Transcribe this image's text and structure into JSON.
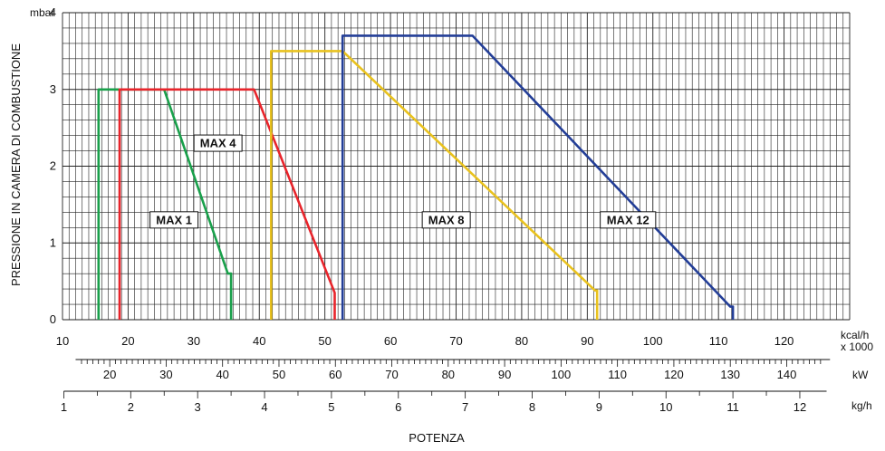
{
  "chart_data": {
    "type": "area",
    "y_unit": "mbar",
    "ylabel": "PRESSIONE IN CAMERA DI COMBUSTIONE",
    "xlabel": "POTENZA",
    "ylim": [
      0,
      4
    ],
    "yticks": [
      "0",
      "1",
      "2",
      "3",
      "4"
    ],
    "xlim": [
      10,
      130
    ],
    "grid": true,
    "axes": [
      {
        "unit": "kcal/h",
        "unit2": "x 1000",
        "ticks": [
          10,
          20,
          30,
          40,
          50,
          60,
          70,
          80,
          90,
          100,
          110,
          120
        ]
      },
      {
        "unit": "kW",
        "ticks": [
          20,
          30,
          40,
          50,
          60,
          70,
          80,
          90,
          100,
          110,
          120,
          130,
          140
        ]
      },
      {
        "unit": "kg/h",
        "ticks": [
          1,
          2,
          3,
          4,
          5,
          6,
          7,
          8,
          9,
          10,
          11,
          12
        ]
      }
    ],
    "series": [
      {
        "name": "MAX 1",
        "color": "#19a04b",
        "x": [
          15.5,
          15.5,
          25.5,
          35.2,
          35.7,
          35.7
        ],
        "y": [
          0,
          3,
          3,
          0.6,
          0.6,
          0
        ]
      },
      {
        "name": "MAX 4",
        "color": "#e8242b",
        "x": [
          18.7,
          18.7,
          39.2,
          51.5,
          51.5
        ],
        "y": [
          0,
          3,
          3,
          0.35,
          0
        ]
      },
      {
        "name": "MAX 8",
        "color": "#e9c21e",
        "x": [
          41.8,
          41.8,
          52.7,
          91.2,
          91.5,
          91.5
        ],
        "y": [
          0,
          3.5,
          3.5,
          0.38,
          0.38,
          0
        ]
      },
      {
        "name": "MAX 12",
        "color": "#233e97",
        "x": [
          52.7,
          52.7,
          72.5,
          111.8,
          112.2,
          112.2
        ],
        "y": [
          0,
          3.7,
          3.7,
          0.17,
          0.17,
          0
        ]
      }
    ]
  }
}
